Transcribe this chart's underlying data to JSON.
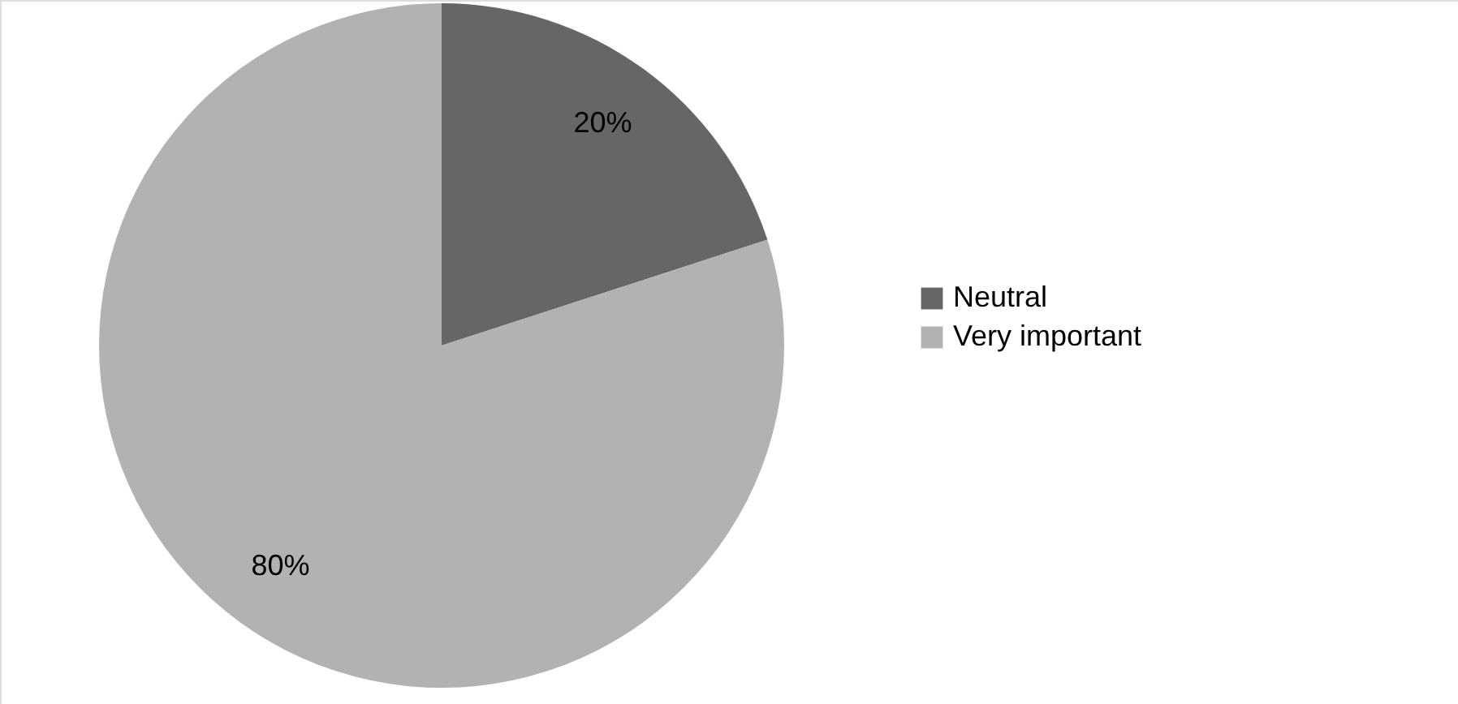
{
  "chart_data": {
    "type": "pie",
    "categories": [
      "Neutral",
      "Very important"
    ],
    "values": [
      20,
      80
    ],
    "colors": [
      "#666666",
      "#b2b2b2"
    ],
    "value_labels": [
      "20%",
      "80%"
    ],
    "legend": "right"
  }
}
